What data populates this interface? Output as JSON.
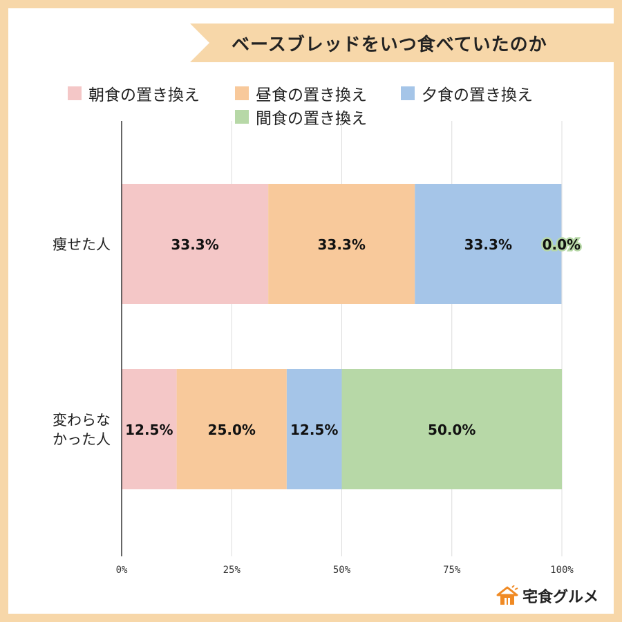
{
  "title": "ベースブレッドをいつ食べていたのか",
  "logo": {
    "text": "宅食グルメ",
    "icon": "house-icon",
    "color": "#f08a24"
  },
  "colors": {
    "background_border": "#f7d7a9",
    "ribbon": "#f7d7a9"
  },
  "chart_data": {
    "type": "bar",
    "orientation": "horizontal",
    "stacked": true,
    "normalized": true,
    "categories": [
      "痩せた人",
      "変わらな\nかった人"
    ],
    "series": [
      {
        "name": "朝食の置き換え",
        "color": "#f4c7c7",
        "values": [
          33.3,
          12.5
        ],
        "labels": [
          "33.3%",
          "12.5%"
        ]
      },
      {
        "name": "昼食の置き換え",
        "color": "#f8c99b",
        "values": [
          33.3,
          25.0
        ],
        "labels": [
          "33.3%",
          "25.0%"
        ]
      },
      {
        "name": "夕食の置き換え",
        "color": "#a5c5e8",
        "values": [
          33.3,
          12.5
        ],
        "labels": [
          "33.3%",
          "12.5%"
        ]
      },
      {
        "name": "間食の置き換え",
        "color": "#b7d8a7",
        "values": [
          0.0,
          50.0
        ],
        "labels": [
          "0.0%",
          "50.0%"
        ]
      }
    ],
    "xlim": [
      0,
      100
    ],
    "x_ticks": [
      "0%",
      "25%",
      "50%",
      "75%",
      "100%"
    ],
    "grid": true,
    "legend_position": "top"
  }
}
